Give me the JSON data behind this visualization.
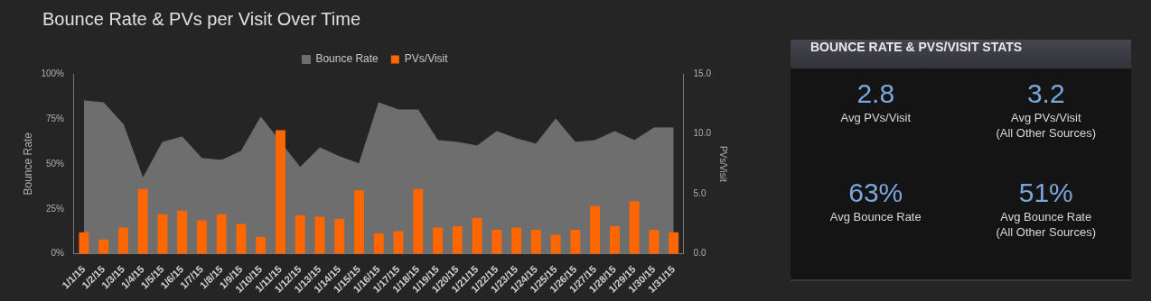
{
  "chart_data": [
    {
      "type": "bar",
      "title": "Bounce Rate & PVs per Visit Over Time",
      "ylabel": "Bounce Rate",
      "y2label": "PVs/Visit",
      "legend": "top",
      "categories": [
        "1/1/15",
        "1/2/15",
        "1/3/15",
        "1/4/15",
        "1/5/15",
        "1/6/15",
        "1/7/15",
        "1/8/15",
        "1/9/15",
        "1/10/15",
        "1/11/15",
        "1/12/15",
        "1/13/15",
        "1/14/15",
        "1/15/15",
        "1/16/15",
        "1/17/15",
        "1/18/15",
        "1/19/15",
        "1/20/15",
        "1/21/15",
        "1/22/15",
        "1/23/15",
        "1/24/15",
        "1/25/15",
        "1/26/15",
        "1/27/15",
        "1/28/15",
        "1/29/15",
        "1/30/15",
        "1/31/15"
      ],
      "series": [
        {
          "name": "Bounce Rate",
          "type": "area",
          "axis": "y",
          "color": "#6e6e6e",
          "values": [
            85,
            84,
            72,
            42,
            62,
            65,
            53,
            52,
            57,
            76,
            null,
            48,
            59,
            54,
            50,
            84,
            80,
            80,
            63,
            62,
            60,
            68,
            64,
            61,
            75,
            62,
            63,
            68,
            63,
            70,
            70
          ]
        },
        {
          "name": "PVs/Visit",
          "type": "bar",
          "axis": "y2",
          "color": "#ff6600",
          "values": [
            1.8,
            1.2,
            2.2,
            5.4,
            3.3,
            3.6,
            2.8,
            3.3,
            2.5,
            1.4,
            10.3,
            3.2,
            3.1,
            2.9,
            5.3,
            1.7,
            1.9,
            5.4,
            2.2,
            2.3,
            3.0,
            2.0,
            2.2,
            2.0,
            1.6,
            2.0,
            4.0,
            2.3,
            4.4,
            2.0,
            1.8
          ]
        }
      ],
      "ylim": [
        0,
        100
      ],
      "yticks": [
        {
          "value": 0,
          "label": "0%"
        },
        {
          "value": 25,
          "label": "25%"
        },
        {
          "value": 50,
          "label": "50%"
        },
        {
          "value": 75,
          "label": "75%"
        },
        {
          "value": 100,
          "label": "100%"
        }
      ],
      "y2lim": [
        0,
        15
      ],
      "y2ticks": [
        {
          "value": 0,
          "label": "0.0"
        },
        {
          "value": 5,
          "label": "5.0"
        },
        {
          "value": 10,
          "label": "10.0"
        },
        {
          "value": 15,
          "label": "15.0"
        }
      ]
    },
    {
      "type": "other",
      "title": "BOUNCE RATE & PVS/VISIT STATS",
      "annotations": [
        "2.8\nAvg PVs/Visit",
        "3.2\nAvg PVs/Visit\n(All Other Sources)",
        "63%\nAvg Bounce Rate",
        "51%\nAvg Bounce Rate\n(All Other Sources)"
      ]
    }
  ]
}
